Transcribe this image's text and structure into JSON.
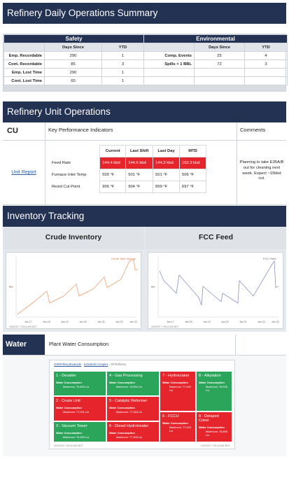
{
  "title": "Refinery Daily Operations Summary",
  "safety": {
    "header": "Safety",
    "col1": "Days Since",
    "col2": "YTD",
    "rows": [
      {
        "label": "Emp. Recordable",
        "days": "290",
        "ytd": "1"
      },
      {
        "label": "Cont. Recordable",
        "days": "85",
        "ytd": "3"
      },
      {
        "label": "Emp. Lost Time",
        "days": "290",
        "ytd": "1"
      },
      {
        "label": "Cont. Lost Time",
        "days": "60",
        "ytd": "1"
      }
    ]
  },
  "environmental": {
    "header": "Environmental",
    "col1": "Days Since",
    "col2": "YTD",
    "rows": [
      {
        "label": "Comp. Events",
        "days": "25",
        "ytd": "4"
      },
      {
        "label": "Spills > 1 BBL",
        "days": "72",
        "ytd": "3"
      }
    ]
  },
  "unit_ops": {
    "title": "Refinery Unit Operations",
    "unit": "CU",
    "kpi_header": "Key Performance Indicators",
    "comments_header": "Comments",
    "unit_report_link": "Unit Report",
    "columns": [
      "Current",
      "Last Shift",
      "Last Day",
      "MTD"
    ],
    "rows": [
      {
        "label": "Feed Rate",
        "values": [
          "144.4 kbd",
          "144.6 kbd",
          "144.3 kbd",
          "162.3 kbd"
        ]
      },
      {
        "label": "Furnace Inlet Temp",
        "values": [
          "500 °F",
          "501 °F",
          "501 °F",
          "506 °F"
        ]
      },
      {
        "label": "Resid Cut Point",
        "values": [
          "906 °F",
          "904 °F",
          "899 °F",
          "697 °F"
        ]
      }
    ],
    "comment": "Planning to take E35A/B out for cleaning next week. Expect ~15kbd cut."
  },
  "inventory": {
    "title": "Inventory Tracking",
    "crude_title": "Crude Inventory",
    "fcc_title": "FCC Feed",
    "crude_legend": "Crude Tank Volume",
    "fcc_legend": "FCC Feed",
    "y_axis_label": "bbl",
    "x_ticks": [
      "Jan 17",
      "Jan 18",
      "Jan 19",
      "Jan 20",
      "Jan 21",
      "Jan 22",
      "Jan 23"
    ],
    "crude_caption": "4/6/2020 7:28:44 AM MDT",
    "fcc_caption": "4/6/2020 7:28:44 AM MDT"
  },
  "water": {
    "title": "Water",
    "subtitle": "Plant Water Consumption",
    "breadcrumb": [
      "OSIRefineryExample",
      "Industrial Complex",
      "Oil Refinery"
    ],
    "caption_left": "4/3/2020 7:28:44 AM MDT",
    "caption_right": "4/3/2020 7:28:44 AM MDT",
    "tiles": [
      {
        "name": "1 - Desalter",
        "metric": "Water Consumption",
        "value": "Maximum: 76,890 L/s"
      },
      {
        "name": "4 - Gas Processing",
        "metric": "Water Consumption",
        "value": "Maximum: 76,654 L/s"
      },
      {
        "name": "7 - Hydrocraker",
        "metric": "Water Consumption",
        "value": "Maximum: 77,302 L/s"
      },
      {
        "name": "8 - Alkylation",
        "metric": "Water Consumption",
        "value": "Maximum: 76,525 L/s"
      },
      {
        "name": "2 - Crude Unit",
        "metric": "Water Consumption",
        "value": "Maximum: 77,001 L/s"
      },
      {
        "name": "5 - Catalytic Reformer",
        "metric": "Water Consumption",
        "value": "Maximum: 77,353 L/s"
      },
      {
        "name": "6 - FCCU",
        "metric": "Water Consumption",
        "value": "Maximum: 77,024 L/s"
      },
      {
        "name": "9 - Delayed Coker",
        "metric": "Water Consumption",
        "value": "Maximum: 76,808 L/s"
      },
      {
        "name": "3 - Vacuum Tower",
        "metric": "Water Consumption",
        "value": "Maximum: 76,505 L/s"
      },
      {
        "name": "6 - Diesel Hydrotreater",
        "metric": "Water Consumption",
        "value": "Maximum: 77,303 L/s"
      }
    ]
  },
  "colors": {
    "banner": "#233152",
    "red": "#e5242b",
    "green": "#2aa55a",
    "crude_line": "#f0a070",
    "fcc_line": "#8a94c8"
  }
}
